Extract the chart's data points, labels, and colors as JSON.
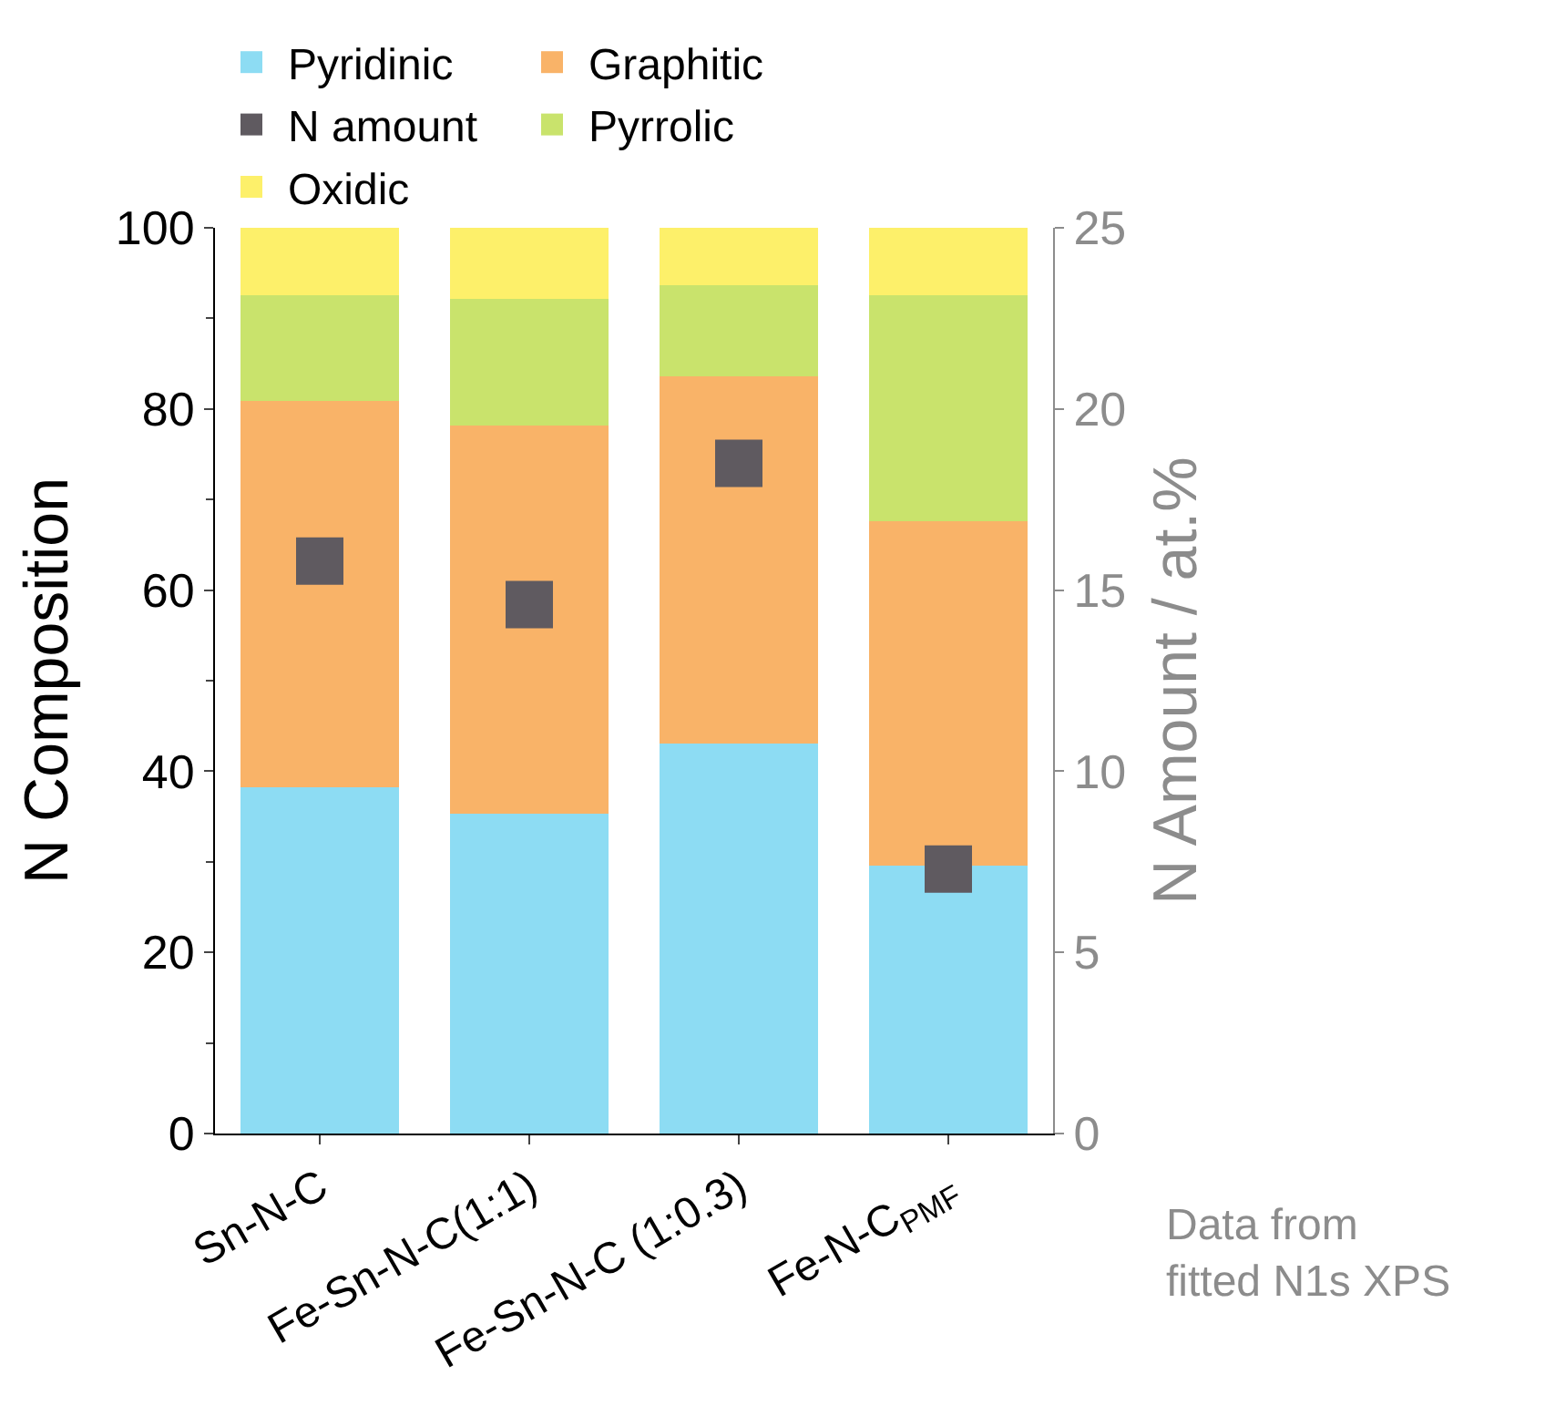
{
  "chart_data": {
    "type": "bar",
    "stacked": true,
    "ylabel": "N Composition",
    "y2label": "N Amount / at.%",
    "categories": [
      "Sn-N-C",
      "Fe-Sn-N-C(1:1)",
      "Fe-Sn-N-C (1:0.3)",
      "Fe-N-C$_{PMF}$"
    ],
    "series": [
      {
        "name": "Pyridinic",
        "color": "#8ddcf3",
        "values": [
          38.2,
          35.3,
          43.1,
          29.6
        ]
      },
      {
        "name": "Graphitic",
        "color": "#f9b368",
        "values": [
          42.7,
          42.9,
          40.5,
          38.0
        ]
      },
      {
        "name": "Pyrrolic",
        "color": "#c9e36c",
        "values": [
          11.7,
          14.0,
          10.1,
          25.0
        ]
      },
      {
        "name": "Oxidic",
        "color": "#fdf06a",
        "values": [
          7.4,
          7.8,
          6.3,
          7.4
        ]
      },
      {
        "name": "N amount",
        "type": "scatter",
        "axis": "y2",
        "marker": "square",
        "color": "#5f5a60",
        "values": [
          15.8,
          14.6,
          18.5,
          7.3
        ]
      }
    ],
    "ylim": [
      0,
      100
    ],
    "yticks": [
      0,
      20,
      40,
      60,
      80,
      100
    ],
    "y2lim": [
      0,
      25
    ],
    "y2ticks": [
      0,
      5,
      10,
      15,
      20,
      25
    ],
    "legend": "top",
    "annotations": [
      "Data from\nfitted N1s XPS"
    ]
  }
}
